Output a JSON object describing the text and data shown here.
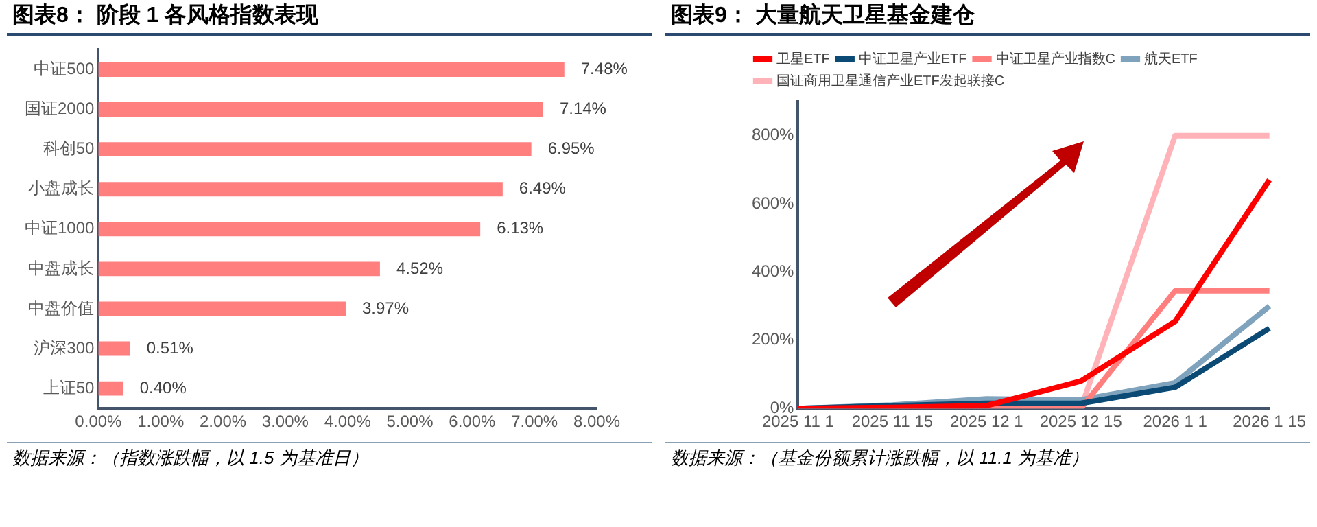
{
  "chart_data": [
    {
      "type": "bar",
      "orientation": "horizontal",
      "title": "图表8：  阶段 1 各风格指数表现",
      "categories": [
        "中证500",
        "国证2000",
        "科创50",
        "小盘成长",
        "中证1000",
        "中盘成长",
        "中盘价值",
        "沪深300",
        "上证50"
      ],
      "values": [
        7.48,
        7.14,
        6.95,
        6.49,
        6.13,
        4.52,
        3.97,
        0.51,
        0.4
      ],
      "value_labels": [
        "7.48%",
        "7.14%",
        "6.95%",
        "6.49%",
        "6.13%",
        "4.52%",
        "3.97%",
        "0.51%",
        "0.40%"
      ],
      "color": "#ff7f7f",
      "xlim": [
        0,
        8
      ],
      "xticks": [
        {
          "value": 0,
          "label": "0.00%"
        },
        {
          "value": 1,
          "label": "1.00%"
        },
        {
          "value": 2,
          "label": "2.00%"
        },
        {
          "value": 3,
          "label": "3.00%"
        },
        {
          "value": 4,
          "label": "4.00%"
        },
        {
          "value": 5,
          "label": "5.00%"
        },
        {
          "value": 6,
          "label": "6.00%"
        },
        {
          "value": 7,
          "label": "7.00%"
        },
        {
          "value": 8,
          "label": "8.00%"
        }
      ],
      "grid": false,
      "legend": false,
      "annotations": [
        "数据来源：（指数涨跌幅，以 1.5 为基准日）"
      ]
    },
    {
      "type": "line",
      "title": "图表9：  大量航天卫星基金建仓",
      "categories": [
        "2025 11 1",
        "2025 11 15",
        "2025 12 1",
        "2025 12 15",
        "2026 1 1",
        "2026 1 15"
      ],
      "series": [
        {
          "name": "卫星ETF",
          "color": "#ff0000",
          "values": [
            0,
            3,
            8,
            80,
            255,
            670
          ]
        },
        {
          "name": "中证卫星产业ETF",
          "color": "#0b4a75",
          "values": [
            0,
            8,
            15,
            15,
            62,
            235
          ]
        },
        {
          "name": "中证卫星产业指数C",
          "color": "#ff7f7f",
          "values": [
            0,
            0,
            0,
            0,
            345,
            345
          ]
        },
        {
          "name": "航天ETF",
          "color": "#7fa3bd",
          "values": [
            0,
            10,
            28,
            25,
            75,
            300
          ]
        },
        {
          "name": "国证商用卫星通信产业ETF发起联接C",
          "color": "#ffb3b8",
          "values": [
            0,
            0,
            0,
            0,
            800,
            800
          ]
        }
      ],
      "ylim": [
        0,
        900
      ],
      "yticks": [
        {
          "value": 0,
          "label": "0%"
        },
        {
          "value": 200,
          "label": "200%"
        },
        {
          "value": 400,
          "label": "400%"
        },
        {
          "value": 600,
          "label": "600%"
        },
        {
          "value": 800,
          "label": "800%"
        }
      ],
      "grid": false,
      "legend": "top",
      "marker": "none",
      "line_style": "solid",
      "annotations": [
        "数据来源：（基金份额累计涨跌幅，以 11.1 为基准）"
      ]
    }
  ]
}
